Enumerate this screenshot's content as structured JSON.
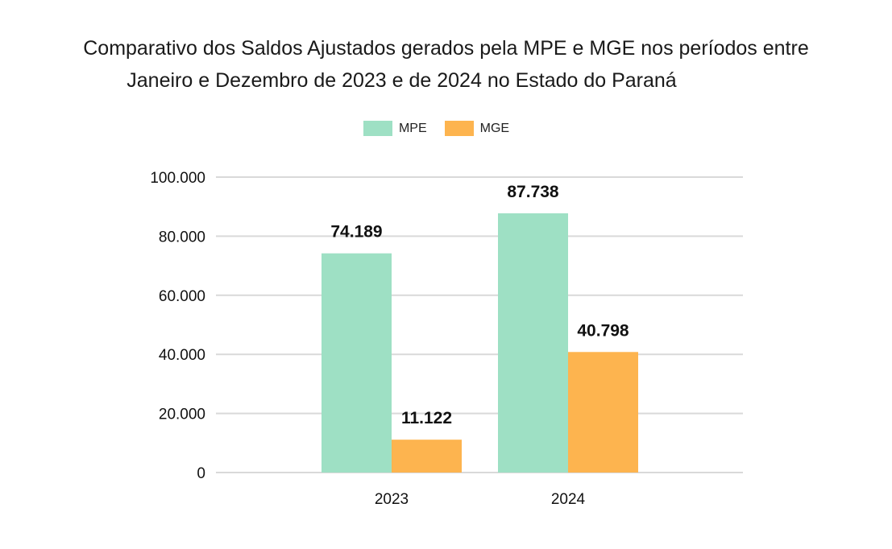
{
  "chart_data": {
    "type": "bar",
    "title_line1": "Comparativo dos Saldos Ajustados gerados pela MPE e MGE nos períodos entre",
    "title_line2": "Janeiro e Dezembro de 2023 e de 2024 no Estado do Paraná",
    "categories": [
      "2023",
      "2024"
    ],
    "series": [
      {
        "name": "MPE",
        "color": "#9ee0c4",
        "values": [
          74189,
          87738
        ],
        "labels": [
          "74.189",
          "87.738"
        ]
      },
      {
        "name": "MGE",
        "color": "#fdb44f",
        "values": [
          11122,
          40798
        ],
        "labels": [
          "11.122",
          "40.798"
        ]
      }
    ],
    "ylim": [
      0,
      100000
    ],
    "yticks": [
      0,
      20000,
      40000,
      60000,
      80000,
      100000
    ],
    "ytick_labels": [
      "0",
      "20.000",
      "40.000",
      "60.000",
      "80.000",
      "100.000"
    ],
    "legend_position": "top-center",
    "grid": true
  }
}
